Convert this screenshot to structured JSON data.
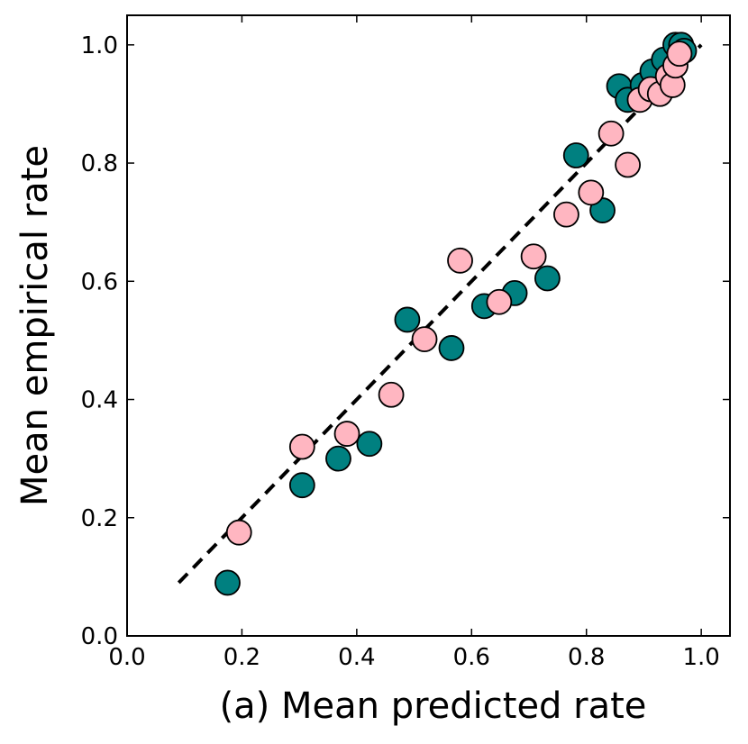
{
  "chart_data": {
    "type": "scatter",
    "xlabel": "(a)  Mean predicted rate",
    "ylabel": "Mean empirical rate",
    "xlim": [
      0.0,
      1.05
    ],
    "ylim": [
      0.0,
      1.05
    ],
    "xticks": [
      "0.0",
      "0.2",
      "0.4",
      "0.6",
      "0.8",
      "1.0"
    ],
    "yticks": [
      "0.0",
      "0.2",
      "0.4",
      "0.6",
      "0.8",
      "1.0"
    ],
    "grid": false,
    "reference_line": {
      "style": "dashed",
      "color": "#000000",
      "from": [
        0.09,
        0.09
      ],
      "to": [
        1.0,
        1.0
      ]
    },
    "series": [
      {
        "name": "teal",
        "color": "#008080",
        "points": [
          [
            0.175,
            0.09
          ],
          [
            0.305,
            0.255
          ],
          [
            0.368,
            0.3
          ],
          [
            0.422,
            0.325
          ],
          [
            0.488,
            0.535
          ],
          [
            0.565,
            0.487
          ],
          [
            0.622,
            0.558
          ],
          [
            0.675,
            0.58
          ],
          [
            0.732,
            0.605
          ],
          [
            0.782,
            0.813
          ],
          [
            0.828,
            0.72
          ],
          [
            0.857,
            0.93
          ],
          [
            0.872,
            0.907
          ],
          [
            0.898,
            0.932
          ],
          [
            0.915,
            0.955
          ],
          [
            0.935,
            0.975
          ],
          [
            0.955,
            1.0
          ],
          [
            0.965,
            1.0
          ],
          [
            0.97,
            0.99
          ]
        ]
      },
      {
        "name": "pink",
        "color": "#FFB6C1",
        "points": [
          [
            0.195,
            0.175
          ],
          [
            0.305,
            0.32
          ],
          [
            0.383,
            0.342
          ],
          [
            0.46,
            0.408
          ],
          [
            0.518,
            0.502
          ],
          [
            0.58,
            0.635
          ],
          [
            0.648,
            0.565
          ],
          [
            0.708,
            0.642
          ],
          [
            0.765,
            0.713
          ],
          [
            0.808,
            0.75
          ],
          [
            0.843,
            0.85
          ],
          [
            0.872,
            0.797
          ],
          [
            0.893,
            0.907
          ],
          [
            0.912,
            0.925
          ],
          [
            0.928,
            0.917
          ],
          [
            0.942,
            0.947
          ],
          [
            0.95,
            0.932
          ],
          [
            0.955,
            0.965
          ],
          [
            0.962,
            0.985
          ]
        ]
      }
    ]
  }
}
